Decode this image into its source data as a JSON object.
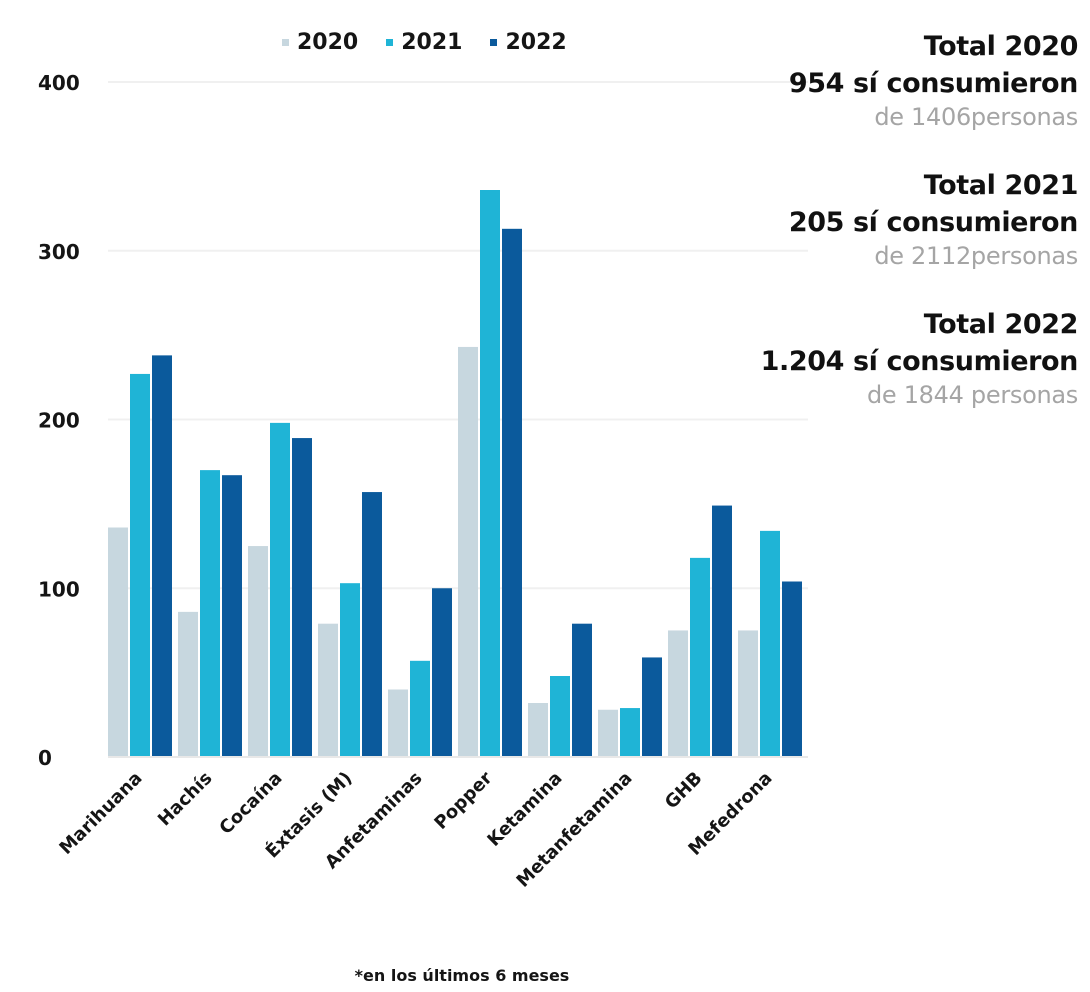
{
  "legend": [
    {
      "label": "2020",
      "color": "#c7d7df"
    },
    {
      "label": "2021",
      "color": "#1fb4d6"
    },
    {
      "label": "2022",
      "color": "#0b5a9c"
    }
  ],
  "totals": [
    {
      "title": "Total 2020",
      "consumed": "954 sí consumieron",
      "of": "de 1406personas"
    },
    {
      "title": "Total 2021",
      "consumed": "205 sí consumieron",
      "of": "de 2112personas"
    },
    {
      "title": "Total 2022",
      "consumed": "1.204 sí consumieron",
      "of": "de 1844 personas"
    }
  ],
  "footnote": "*en los últimos 6 meses",
  "chart_data": {
    "type": "bar",
    "categories": [
      "Marihuana",
      "Hachís",
      "Cocaína",
      "Éxtasis (M)",
      "Anfetaminas",
      "Popper",
      "Ketamina",
      "Metanfetamina",
      "GHB",
      "Mefedrona"
    ],
    "series": [
      {
        "name": "2020",
        "color": "#c7d7df",
        "values": [
          136,
          86,
          125,
          79,
          40,
          243,
          32,
          28,
          75,
          75
        ]
      },
      {
        "name": "2021",
        "color": "#1fb4d6",
        "values": [
          227,
          170,
          198,
          103,
          57,
          336,
          48,
          29,
          118,
          134
        ]
      },
      {
        "name": "2022",
        "color": "#0b5a9c",
        "values": [
          238,
          167,
          189,
          157,
          100,
          313,
          79,
          59,
          149,
          104
        ]
      }
    ],
    "yticks": [
      0,
      100,
      200,
      300,
      400
    ],
    "ylim": [
      0,
      400
    ],
    "grid": true,
    "xlabel": "",
    "ylabel": ""
  }
}
